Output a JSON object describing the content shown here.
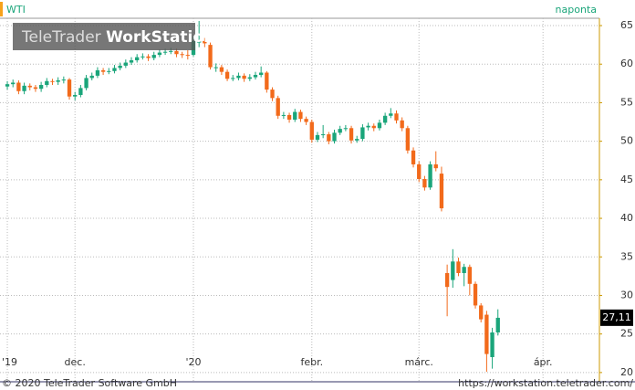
{
  "chart_data": {
    "type": "candlestick",
    "title": "WTI",
    "subtitle": "naponta",
    "brand": "TeleTrader",
    "brand_bold": "WorkStation",
    "copyright": "© 2020 TeleTrader Software GmbH",
    "url": "https://workstation.teletrader.com/",
    "up_color": "#1aa57a",
    "down_color": "#f26a1b",
    "grid": true,
    "ylim": [
      18.8,
      65.95
    ],
    "yticks": [
      20,
      25,
      30,
      35,
      40,
      45,
      50,
      55,
      60,
      65
    ],
    "xlim": [
      -1.3,
      105
    ],
    "xticks": [
      {
        "value": 0,
        "label": "'19"
      },
      {
        "value": 12,
        "label": "dec."
      },
      {
        "value": 33,
        "label": "'20"
      },
      {
        "value": 54,
        "label": "febr."
      },
      {
        "value": 73,
        "label": "márc."
      },
      {
        "value": 95,
        "label": "ápr."
      }
    ],
    "last": {
      "value": 27.11,
      "label": "27,11"
    },
    "candles": [
      [
        57.1,
        57.8,
        56.7,
        57.4
      ],
      [
        57.4,
        58.0,
        57.0,
        57.6
      ],
      [
        57.6,
        57.9,
        56.1,
        56.5
      ],
      [
        56.5,
        57.6,
        56.1,
        57.2
      ],
      [
        57.2,
        57.5,
        56.6,
        57.0
      ],
      [
        57.0,
        57.3,
        56.4,
        56.8
      ],
      [
        56.8,
        57.7,
        56.4,
        57.3
      ],
      [
        57.3,
        58.2,
        57.0,
        57.8
      ],
      [
        57.8,
        58.1,
        57.3,
        57.7
      ],
      [
        57.7,
        58.3,
        57.3,
        57.9
      ],
      [
        57.9,
        58.4,
        57.5,
        58.0
      ],
      [
        58.0,
        58.2,
        55.4,
        55.8
      ],
      [
        55.8,
        56.4,
        55.3,
        56.0
      ],
      [
        56.0,
        57.3,
        55.7,
        56.9
      ],
      [
        56.9,
        58.6,
        56.6,
        58.2
      ],
      [
        58.2,
        58.9,
        57.9,
        58.5
      ],
      [
        58.5,
        59.6,
        58.2,
        59.2
      ],
      [
        59.2,
        59.5,
        58.6,
        59.0
      ],
      [
        59.0,
        59.5,
        58.7,
        59.1
      ],
      [
        59.1,
        59.9,
        58.8,
        59.5
      ],
      [
        59.5,
        60.2,
        59.2,
        59.8
      ],
      [
        59.8,
        60.6,
        59.5,
        60.2
      ],
      [
        60.2,
        60.9,
        59.9,
        60.5
      ],
      [
        60.5,
        61.3,
        60.2,
        60.9
      ],
      [
        60.9,
        61.4,
        60.6,
        61.0
      ],
      [
        61.0,
        61.3,
        60.4,
        60.8
      ],
      [
        60.8,
        61.6,
        60.5,
        61.2
      ],
      [
        61.2,
        61.9,
        60.9,
        61.5
      ],
      [
        61.5,
        62.0,
        61.2,
        61.6
      ],
      [
        61.6,
        62.1,
        61.3,
        61.7
      ],
      [
        61.7,
        62.0,
        60.9,
        61.3
      ],
      [
        61.3,
        61.6,
        60.8,
        61.2
      ],
      [
        61.2,
        61.8,
        60.6,
        61.1
      ],
      [
        61.2,
        63.6,
        61.0,
        63.0
      ],
      [
        62.8,
        65.6,
        62.2,
        63.0
      ],
      [
        63.0,
        63.4,
        62.2,
        62.7
      ],
      [
        62.5,
        62.8,
        59.3,
        59.6
      ],
      [
        59.6,
        60.1,
        59.0,
        59.6
      ],
      [
        59.6,
        59.9,
        58.6,
        59.0
      ],
      [
        59.0,
        59.3,
        57.8,
        58.1
      ],
      [
        58.1,
        58.6,
        57.8,
        58.2
      ],
      [
        58.2,
        58.9,
        57.9,
        58.5
      ],
      [
        58.5,
        58.8,
        57.7,
        58.1
      ],
      [
        58.1,
        58.7,
        57.8,
        58.3
      ],
      [
        58.3,
        59.0,
        58.0,
        58.6
      ],
      [
        58.6,
        59.7,
        58.3,
        58.9
      ],
      [
        58.9,
        59.1,
        56.3,
        56.7
      ],
      [
        56.7,
        57.0,
        55.2,
        55.6
      ],
      [
        55.6,
        55.9,
        52.9,
        53.3
      ],
      [
        53.3,
        53.8,
        52.9,
        53.4
      ],
      [
        53.4,
        53.7,
        52.4,
        52.8
      ],
      [
        52.8,
        54.2,
        52.5,
        53.8
      ],
      [
        53.8,
        54.1,
        52.5,
        52.9
      ],
      [
        52.9,
        53.2,
        52.1,
        52.5
      ],
      [
        52.5,
        52.8,
        49.8,
        50.2
      ],
      [
        50.2,
        51.2,
        49.9,
        50.8
      ],
      [
        50.8,
        52.1,
        50.4,
        50.9
      ],
      [
        50.9,
        51.2,
        49.6,
        50.0
      ],
      [
        50.0,
        51.5,
        49.7,
        51.1
      ],
      [
        51.1,
        52.0,
        50.8,
        51.6
      ],
      [
        51.6,
        52.1,
        51.3,
        51.7
      ],
      [
        51.7,
        52.0,
        49.7,
        50.1
      ],
      [
        50.1,
        50.7,
        49.8,
        50.3
      ],
      [
        50.3,
        52.2,
        50.0,
        51.8
      ],
      [
        51.8,
        52.4,
        51.4,
        52.0
      ],
      [
        52.0,
        52.3,
        51.3,
        51.7
      ],
      [
        51.7,
        52.8,
        51.4,
        52.4
      ],
      [
        52.4,
        53.7,
        52.1,
        53.3
      ],
      [
        53.3,
        54.3,
        53.0,
        53.6
      ],
      [
        53.6,
        54.0,
        52.3,
        52.7
      ],
      [
        52.7,
        53.1,
        51.3,
        51.7
      ],
      [
        51.7,
        52.0,
        48.4,
        48.8
      ],
      [
        48.8,
        49.2,
        46.6,
        47.0
      ],
      [
        47.0,
        47.4,
        44.7,
        45.1
      ],
      [
        45.1,
        45.5,
        43.6,
        44.0
      ],
      [
        44.0,
        47.4,
        43.7,
        47.0
      ],
      [
        47.0,
        48.7,
        46.1,
        46.5
      ],
      [
        45.8,
        46.7,
        40.9,
        41.3
      ],
      [
        32.9,
        34.0,
        27.3,
        31.1
      ],
      [
        32.0,
        36.0,
        31.0,
        34.4
      ],
      [
        34.4,
        34.9,
        32.5,
        32.9
      ],
      [
        32.9,
        34.1,
        31.2,
        33.7
      ],
      [
        33.7,
        34.0,
        30.0,
        31.5
      ],
      [
        31.5,
        31.8,
        28.3,
        28.7
      ],
      [
        28.7,
        29.0,
        26.5,
        26.9
      ],
      [
        27.5,
        28.0,
        20.1,
        22.4
      ],
      [
        22.0,
        25.8,
        20.5,
        25.2
      ],
      [
        25.2,
        28.2,
        24.8,
        27.1
      ]
    ]
  }
}
